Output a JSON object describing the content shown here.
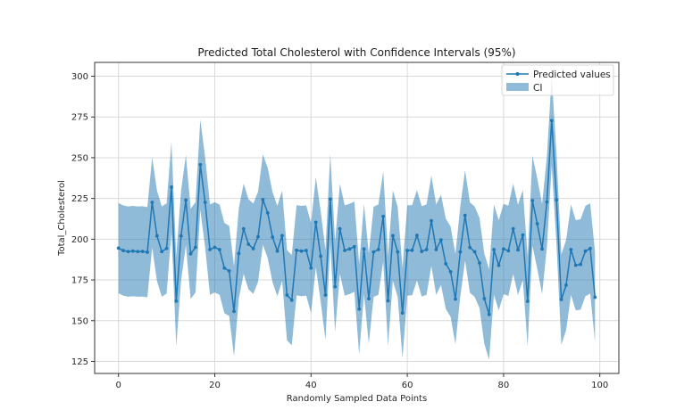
{
  "chart_data": {
    "type": "line",
    "title": "Predicted Total Cholesterol with Confidence Intervals (95%)",
    "xlabel": "Randomly Sampled Data Points",
    "ylabel": "Total_Cholesterol",
    "xlim": [
      -4.95,
      103.95
    ],
    "ylim": [
      117.6,
      308.5
    ],
    "xticks": [
      0,
      20,
      40,
      60,
      80,
      100
    ],
    "yticks": [
      125,
      150,
      175,
      200,
      225,
      250,
      275,
      300
    ],
    "grid": true,
    "legend": {
      "placement": "top-right",
      "entries": [
        "Predicted values",
        "CI"
      ]
    },
    "colors": {
      "line": "#1f77b4",
      "ci_fill": "#1f77b4",
      "ci_alpha": 0.5,
      "grid": "#d9d9d9",
      "axes": "#333333"
    },
    "series": [
      {
        "name": "Predicted values",
        "style": "line-with-markers",
        "x_start": 0,
        "values": [
          194.5,
          193,
          192.4,
          192.7,
          192.4,
          192.5,
          192,
          222.6,
          202,
          192.4,
          194.3,
          232,
          162,
          202,
          224,
          191,
          195,
          245.7,
          222.6,
          193.6,
          195,
          193.6,
          182.3,
          180.5,
          155.7,
          191.2,
          206.4,
          196.9,
          194.2,
          201.5,
          224.3,
          216.1,
          201.3,
          192.7,
          202.2,
          165.7,
          162.6,
          193.2,
          192.7,
          193.1,
          182.3,
          210.4,
          189.6,
          165.7,
          224.6,
          170.8,
          206.4,
          193.1,
          194,
          195.4,
          157.1,
          194,
          163.5,
          192.2,
          193.6,
          214,
          162.2,
          202.2,
          192.2,
          154.7,
          193.1,
          193.2,
          202.4,
          192.5,
          193.6,
          211.3,
          193.6,
          199.6,
          184.9,
          180,
          163.2,
          192.2,
          214.6,
          194.9,
          192.3,
          185.4,
          163.5,
          153.8,
          193.6,
          183.9,
          194,
          192.9,
          206.4,
          193.4,
          202.6,
          161.9,
          223.7,
          209.5,
          194,
          222.8,
          272.8,
          224.1,
          163,
          171.8,
          193.6,
          184,
          184.5,
          192.7,
          194.3,
          164.4
        ]
      },
      {
        "name": "CI",
        "style": "band",
        "half_width": 27.7,
        "description": "95% confidence interval band: lower = predicted - 27.7, upper = predicted + 27.7"
      }
    ]
  }
}
